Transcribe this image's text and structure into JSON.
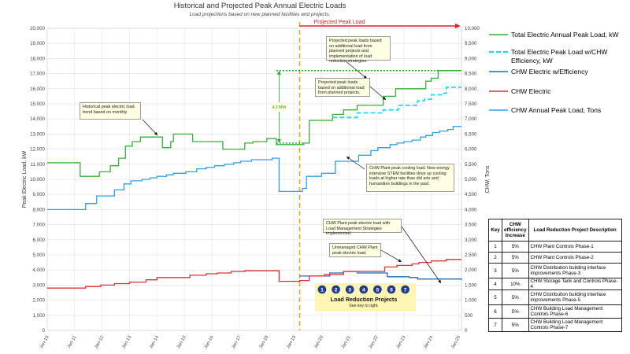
{
  "chart_data": {
    "type": "line",
    "title": "Historical and Projected Peak Annual Electric Loads",
    "subtitle": "Load projections based on new planned facilities and projects.",
    "ylabel": "Peak Electric Load, kW",
    "y2label": "CHW, Tons",
    "ylim": [
      0,
      20000
    ],
    "y2lim": [
      0,
      10000
    ],
    "yticks": [
      "0",
      "1,000",
      "2,000",
      "3,000",
      "4,000",
      "5,000",
      "6,000",
      "7,000",
      "8,000",
      "9,000",
      "10,000",
      "11,000",
      "12,000",
      "13,000",
      "14,000",
      "15,000",
      "16,000",
      "17,000",
      "18,000",
      "19,000",
      "20,000"
    ],
    "y2ticks": [
      "0",
      "500",
      "1,000",
      "1,500",
      "2,000",
      "2,500",
      "3,000",
      "3,500",
      "4,000",
      "4,500",
      "5,000",
      "5,500",
      "6,000",
      "6,500",
      "7,000",
      "7,500",
      "8,000",
      "8,500",
      "9,000",
      "9,500",
      "10,000"
    ],
    "xlim": [
      2010,
      2025.1
    ],
    "xticks": [
      "Jan-10",
      "Jan-11",
      "Jan-12",
      "Jan-13",
      "Jan-14",
      "Jan-15",
      "Jan-16",
      "Jan-17",
      "Jan-18",
      "Jan-19",
      "Jan-20",
      "Jan-21",
      "Jan-22",
      "Jan-23",
      "Jan-24",
      "Jan-25"
    ],
    "projection_start": 2019.2,
    "projected_label": "Projected Peak Load",
    "grid": true,
    "legend_position": "right",
    "series": [
      {
        "name": "Total Electric Annual Peak Load, kW",
        "color": "#33b233",
        "axis": "left",
        "style": "solid",
        "x": [
          2010,
          2011.2,
          2011.35,
          2011.9,
          2012.3,
          2012.6,
          2012.85,
          2013.1,
          2013.4,
          2014.2,
          2014.5,
          2014.6,
          2015.3,
          2016.4,
          2017.2,
          2017.5,
          2018,
          2018.35,
          2019.35,
          2019.55,
          2020.4,
          2020.8,
          2021.3,
          2022.25,
          2022.7,
          2023.5,
          2023.8,
          2024,
          2024.25,
          2025.1
        ],
        "y": [
          11100,
          10200,
          10200,
          10500,
          10900,
          11400,
          12200,
          12500,
          12800,
          12100,
          12500,
          13000,
          12500,
          12000,
          12400,
          12500,
          12700,
          12300,
          12400,
          13900,
          14300,
          14600,
          14900,
          15500,
          16000,
          16000,
          16500,
          16700,
          17200,
          17200
        ]
      },
      {
        "name": "Total Electric Peak Load w/CHW Efficiency, kW",
        "color": "#22d8f2",
        "axis": "left",
        "style": "dashed",
        "x": [
          2020.4,
          2021.05,
          2021.3,
          2022.25,
          2022.8,
          2023.5,
          2023.75,
          2024,
          2024.4,
          2024.55,
          2025.1
        ],
        "y": [
          14100,
          14100,
          14400,
          14600,
          14900,
          15200,
          15300,
          15600,
          15700,
          16100,
          16100
        ]
      },
      {
        "name": "CHW Electric w/Efficiency",
        "color": "#1e6eb4",
        "axis": "left",
        "style": "solid",
        "x": [
          2019.2,
          2020.3,
          2020.8,
          2021.3,
          2022.4,
          2023.2,
          2023.5,
          2025.1
        ],
        "y": [
          3600,
          3800,
          3900,
          3800,
          3550,
          3500,
          3400,
          3350
        ]
      },
      {
        "name": "CHW Electric",
        "color": "#e03030",
        "axis": "left",
        "style": "solid",
        "x": [
          2010,
          2011.4,
          2011.95,
          2012.45,
          2013,
          2013.6,
          2014,
          2014.4,
          2015.2,
          2015.8,
          2016.2,
          2016.7,
          2017.2,
          2018,
          2018.4,
          2018.45,
          2019.2,
          2019.55,
          2020.1,
          2020.8,
          2021.3,
          2022.3,
          2022.75,
          2023.3,
          2023.55,
          2024,
          2024.55,
          2025.1
        ],
        "y": [
          2800,
          2900,
          3000,
          3100,
          3200,
          3350,
          3500,
          3500,
          3650,
          3750,
          3800,
          3900,
          3950,
          3950,
          3950,
          3250,
          3300,
          3600,
          3700,
          3900,
          3900,
          4200,
          4300,
          4400,
          4500,
          4600,
          4700,
          4700
        ]
      },
      {
        "name": "CHW Annual Peak Load, Tons",
        "color": "#2ea0e8",
        "axis": "right",
        "style": "solid",
        "x": [
          2010,
          2011.4,
          2011.8,
          2012.45,
          2012.8,
          2013.05,
          2013.45,
          2013.75,
          2014,
          2014.35,
          2014.6,
          2015.05,
          2015.45,
          2015.8,
          2016.1,
          2016.45,
          2016.8,
          2017.05,
          2017.45,
          2018,
          2018.2,
          2018.4,
          2018.45,
          2019.3,
          2019.45,
          2020,
          2020.5,
          2021.35,
          2021.8,
          2022.05,
          2022.5,
          2022.75,
          2023,
          2023.3,
          2023.6,
          2023.8,
          2024.05,
          2024.3,
          2024.6,
          2024.8,
          2025.1
        ],
        "y": [
          4000,
          4200,
          4450,
          4650,
          4850,
          4950,
          5000,
          5050,
          5100,
          5150,
          5200,
          5250,
          5350,
          5400,
          5450,
          5500,
          5550,
          5600,
          5650,
          5650,
          5700,
          5700,
          4600,
          4700,
          5100,
          5200,
          5600,
          5800,
          5950,
          6050,
          6150,
          6200,
          6250,
          6300,
          6400,
          6450,
          6550,
          6600,
          6650,
          6750,
          6750
        ]
      }
    ],
    "annotations": [
      {
        "id": "hist",
        "text": "Historical peak electric load trend based on monthly"
      },
      {
        "id": "proj_add",
        "text": "Projected peak loads based on additional load from planned projects and implementation of load reduction strategies."
      },
      {
        "id": "proj",
        "text": "Projected peak loads based on additional load from planned projects."
      },
      {
        "id": "chw_plant",
        "text": "CHW Plant peak cooling load. New energy intensive STEM facilities drive up cooling loads at higher rate than did arts and humanities buildings in the past."
      },
      {
        "id": "chw_lm",
        "text": "CHW Plant peak electric load with Load Management Strategies implemented."
      },
      {
        "id": "unmanaged",
        "text": "Unmanaged CHW Plant peak electric load."
      }
    ],
    "mw_label": "4.2 MW",
    "lrp_title": "Load Reduction Projects",
    "lrp_sub": "See key to right.",
    "lrp_markers": [
      "1",
      "2",
      "3",
      "4",
      "5",
      "6",
      "7"
    ],
    "key_table": {
      "headers": [
        "Key",
        "CHW efficiency Increase",
        "Load Reduction Project Description"
      ],
      "rows": [
        [
          "1",
          "5%",
          "CHW Plant Controls Phase-1"
        ],
        [
          "2",
          "5%",
          "CHW Plant Controls Phase-2"
        ],
        [
          "3",
          "5%",
          "CHW Distribution building interface improvements Phase-3"
        ],
        [
          "4",
          "10%",
          "CHW Storage Tank and Controls Phase-4"
        ],
        [
          "5",
          "5%",
          "CHW Distribution building interface improvements Phase-5"
        ],
        [
          "6",
          "5%",
          "CHW Building Load Management Controls Phase-6"
        ],
        [
          "7",
          "5%",
          "CHW Building Load Management Controls Phase-7"
        ]
      ]
    }
  }
}
